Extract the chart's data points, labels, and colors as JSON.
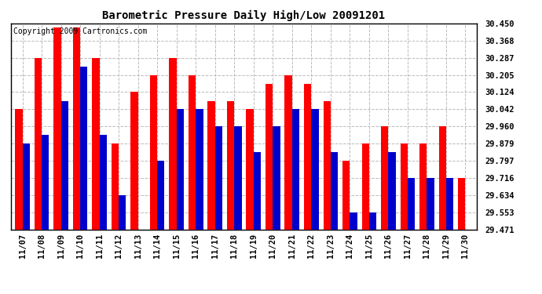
{
  "title": "Barometric Pressure Daily High/Low 20091201",
  "copyright": "Copyright 2009 Cartronics.com",
  "dates": [
    "11/07",
    "11/08",
    "11/09",
    "11/10",
    "11/11",
    "11/12",
    "11/13",
    "11/14",
    "11/15",
    "11/16",
    "11/17",
    "11/18",
    "11/19",
    "11/20",
    "11/21",
    "11/22",
    "11/23",
    "11/24",
    "11/25",
    "11/26",
    "11/27",
    "11/28",
    "11/29",
    "11/30"
  ],
  "highs": [
    30.042,
    30.287,
    30.43,
    30.43,
    30.287,
    29.879,
    30.124,
    30.205,
    30.287,
    30.205,
    30.082,
    30.082,
    30.042,
    30.164,
    30.205,
    30.164,
    30.082,
    29.797,
    29.879,
    29.96,
    29.879,
    29.879,
    29.96,
    29.716
  ],
  "lows": [
    29.879,
    29.92,
    30.082,
    30.246,
    29.92,
    29.634,
    29.471,
    29.797,
    30.042,
    30.042,
    29.96,
    29.961,
    29.838,
    29.961,
    30.042,
    30.042,
    29.838,
    29.553,
    29.553,
    29.838,
    29.716,
    29.716,
    29.716,
    29.471
  ],
  "ymin": 29.471,
  "ymax": 30.45,
  "yticks": [
    30.45,
    30.368,
    30.287,
    30.205,
    30.124,
    30.042,
    29.96,
    29.879,
    29.797,
    29.716,
    29.634,
    29.553,
    29.471
  ],
  "bar_color_high": "#FF0000",
  "bar_color_low": "#0000CC",
  "background_color": "#FFFFFF",
  "grid_color": "#BBBBBB",
  "title_fontsize": 10,
  "copyright_fontsize": 7,
  "tick_fontsize": 7.5
}
